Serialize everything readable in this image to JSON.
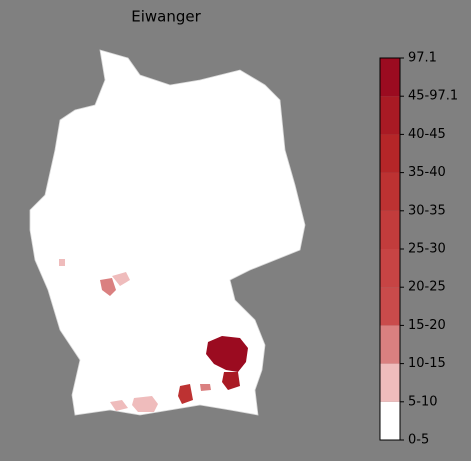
{
  "title": "Eiwanger",
  "legend": {
    "labels": [
      "0-5",
      "5-10",
      "10-15",
      "15-20",
      "20-25",
      "25-30",
      "30-35",
      "35-40",
      "40-45",
      "45-97.1",
      "97.1"
    ],
    "colors": [
      "#ffffff",
      "#efbcbc",
      "#da8080",
      "#c94b4b",
      "#c74444",
      "#c23c3c",
      "#bd3232",
      "#b52628",
      "#a91a24",
      "#9b0b20"
    ]
  }
}
